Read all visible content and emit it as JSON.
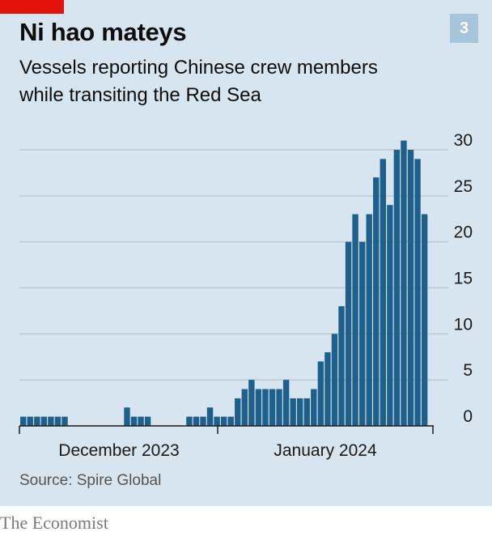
{
  "header": {
    "title": "Ni hao mateys",
    "subtitle_line1": "Vessels reporting Chinese crew members",
    "subtitle_line2": "while transiting the Red Sea",
    "badge": "3"
  },
  "source": "Source: Spire Global",
  "footer": "The Economist",
  "colors": {
    "accent_red": "#e3120b",
    "bar": "#1f5f8b",
    "panel": "#d6e5ef",
    "gridline": "#bcc8d2",
    "badge": "#a6c5da"
  },
  "chart_data": {
    "type": "bar",
    "title": "Vessels reporting Chinese crew members while transiting the Red Sea",
    "xlabel": "",
    "ylabel": "",
    "ylim": [
      0,
      30
    ],
    "yticks": [
      0,
      5,
      10,
      15,
      20,
      25,
      30
    ],
    "x_axis_labels": [
      "December 2023",
      "January 2024"
    ],
    "grid": true,
    "values": [
      1,
      1,
      1,
      1,
      1,
      1,
      1,
      0,
      0,
      0,
      0,
      0,
      0,
      0,
      0,
      2,
      1,
      1,
      1,
      0,
      0,
      0,
      0,
      0,
      1,
      1,
      1,
      2,
      1,
      1,
      1,
      3,
      4,
      5,
      4,
      4,
      4,
      4,
      5,
      3,
      3,
      3,
      4,
      7,
      8,
      10,
      13,
      20,
      23,
      20,
      23,
      27,
      29,
      24,
      30,
      31,
      30,
      29,
      23
    ]
  }
}
